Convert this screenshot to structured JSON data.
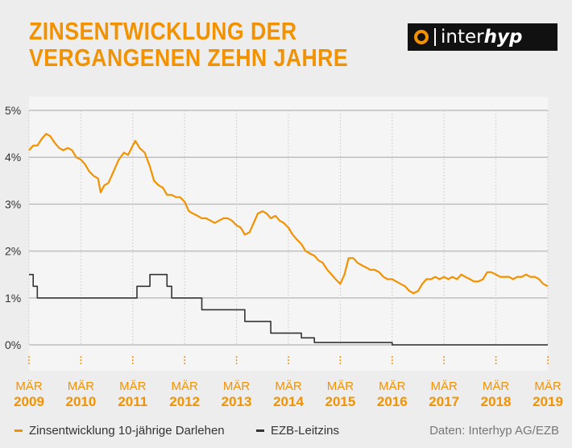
{
  "title": {
    "line1": "ZINSENTWICKLUNG DER",
    "line2": "VERGANGENEN ZEHN JAHRE"
  },
  "logo": {
    "text_main": "inter",
    "text_accent": "hyp"
  },
  "source": "Daten: Interhyp AG/EZB",
  "colors": {
    "mortgage": "#f39200",
    "ecb": "#333333",
    "grid": "#bfbfbf",
    "axis_label": "#f39200"
  },
  "chart_data": {
    "type": "line",
    "title": "ZINSENTWICKLUNG DER VERGANGENEN ZEHN JAHRE",
    "xlabel": "",
    "ylabel": "",
    "ylim": [
      0,
      5
    ],
    "xlim": [
      2009.17,
      2019.17
    ],
    "y_ticks": [
      "0%",
      "1%",
      "2%",
      "3%",
      "4%",
      "5%"
    ],
    "x_ticks": [
      {
        "month": "MÄR",
        "year": "2009",
        "x": 2009.17
      },
      {
        "month": "MÄR",
        "year": "2010",
        "x": 2010.17
      },
      {
        "month": "MÄR",
        "year": "2011",
        "x": 2011.17
      },
      {
        "month": "MÄR",
        "year": "2012",
        "x": 2012.17
      },
      {
        "month": "MÄR",
        "year": "2013",
        "x": 2013.17
      },
      {
        "month": "MÄR",
        "year": "2014",
        "x": 2014.17
      },
      {
        "month": "MÄR",
        "year": "2015",
        "x": 2015.17
      },
      {
        "month": "MÄR",
        "year": "2016",
        "x": 2016.17
      },
      {
        "month": "MÄR",
        "year": "2017",
        "x": 2017.17
      },
      {
        "month": "MÄR",
        "year": "2018",
        "x": 2018.17
      },
      {
        "month": "MÄR",
        "year": "2019",
        "x": 2019.17
      }
    ],
    "grid": true,
    "legend": "bottom",
    "series": [
      {
        "name": "Zinsentwicklung 10-jährige Darlehen",
        "color": "#f39200",
        "step": false,
        "points": [
          [
            2009.17,
            4.15
          ],
          [
            2009.25,
            4.25
          ],
          [
            2009.33,
            4.25
          ],
          [
            2009.42,
            4.4
          ],
          [
            2009.5,
            4.5
          ],
          [
            2009.58,
            4.45
          ],
          [
            2009.67,
            4.3
          ],
          [
            2009.75,
            4.2
          ],
          [
            2009.83,
            4.15
          ],
          [
            2009.92,
            4.2
          ],
          [
            2010.0,
            4.15
          ],
          [
            2010.08,
            4.0
          ],
          [
            2010.17,
            3.95
          ],
          [
            2010.25,
            3.85
          ],
          [
            2010.33,
            3.7
          ],
          [
            2010.42,
            3.6
          ],
          [
            2010.5,
            3.55
          ],
          [
            2010.55,
            3.25
          ],
          [
            2010.62,
            3.4
          ],
          [
            2010.7,
            3.45
          ],
          [
            2010.8,
            3.7
          ],
          [
            2010.9,
            3.95
          ],
          [
            2011.0,
            4.1
          ],
          [
            2011.08,
            4.05
          ],
          [
            2011.17,
            4.25
          ],
          [
            2011.22,
            4.35
          ],
          [
            2011.3,
            4.2
          ],
          [
            2011.4,
            4.1
          ],
          [
            2011.5,
            3.8
          ],
          [
            2011.58,
            3.5
          ],
          [
            2011.67,
            3.4
          ],
          [
            2011.75,
            3.35
          ],
          [
            2011.83,
            3.2
          ],
          [
            2011.92,
            3.2
          ],
          [
            2012.0,
            3.15
          ],
          [
            2012.08,
            3.15
          ],
          [
            2012.17,
            3.05
          ],
          [
            2012.25,
            2.85
          ],
          [
            2012.33,
            2.8
          ],
          [
            2012.42,
            2.75
          ],
          [
            2012.5,
            2.7
          ],
          [
            2012.58,
            2.7
          ],
          [
            2012.67,
            2.65
          ],
          [
            2012.75,
            2.6
          ],
          [
            2012.83,
            2.65
          ],
          [
            2012.92,
            2.7
          ],
          [
            2013.0,
            2.7
          ],
          [
            2013.08,
            2.65
          ],
          [
            2013.17,
            2.55
          ],
          [
            2013.25,
            2.5
          ],
          [
            2013.33,
            2.35
          ],
          [
            2013.42,
            2.4
          ],
          [
            2013.5,
            2.6
          ],
          [
            2013.58,
            2.8
          ],
          [
            2013.67,
            2.85
          ],
          [
            2013.75,
            2.8
          ],
          [
            2013.83,
            2.7
          ],
          [
            2013.92,
            2.75
          ],
          [
            2014.0,
            2.65
          ],
          [
            2014.08,
            2.6
          ],
          [
            2014.17,
            2.5
          ],
          [
            2014.25,
            2.35
          ],
          [
            2014.33,
            2.25
          ],
          [
            2014.42,
            2.15
          ],
          [
            2014.5,
            2.0
          ],
          [
            2014.58,
            1.95
          ],
          [
            2014.67,
            1.9
          ],
          [
            2014.75,
            1.8
          ],
          [
            2014.83,
            1.75
          ],
          [
            2014.92,
            1.6
          ],
          [
            2015.0,
            1.5
          ],
          [
            2015.08,
            1.4
          ],
          [
            2015.17,
            1.3
          ],
          [
            2015.25,
            1.5
          ],
          [
            2015.33,
            1.85
          ],
          [
            2015.42,
            1.85
          ],
          [
            2015.5,
            1.75
          ],
          [
            2015.58,
            1.7
          ],
          [
            2015.67,
            1.65
          ],
          [
            2015.75,
            1.6
          ],
          [
            2015.83,
            1.6
          ],
          [
            2015.92,
            1.55
          ],
          [
            2016.0,
            1.45
          ],
          [
            2016.08,
            1.4
          ],
          [
            2016.17,
            1.4
          ],
          [
            2016.25,
            1.35
          ],
          [
            2016.33,
            1.3
          ],
          [
            2016.42,
            1.25
          ],
          [
            2016.5,
            1.15
          ],
          [
            2016.58,
            1.1
          ],
          [
            2016.67,
            1.15
          ],
          [
            2016.75,
            1.3
          ],
          [
            2016.83,
            1.4
          ],
          [
            2016.92,
            1.4
          ],
          [
            2017.0,
            1.45
          ],
          [
            2017.08,
            1.4
          ],
          [
            2017.17,
            1.45
          ],
          [
            2017.25,
            1.4
          ],
          [
            2017.33,
            1.45
          ],
          [
            2017.42,
            1.4
          ],
          [
            2017.5,
            1.5
          ],
          [
            2017.58,
            1.45
          ],
          [
            2017.67,
            1.4
          ],
          [
            2017.75,
            1.35
          ],
          [
            2017.83,
            1.35
          ],
          [
            2017.92,
            1.4
          ],
          [
            2018.0,
            1.55
          ],
          [
            2018.08,
            1.55
          ],
          [
            2018.17,
            1.5
          ],
          [
            2018.25,
            1.45
          ],
          [
            2018.33,
            1.45
          ],
          [
            2018.42,
            1.45
          ],
          [
            2018.5,
            1.4
          ],
          [
            2018.58,
            1.45
          ],
          [
            2018.67,
            1.45
          ],
          [
            2018.75,
            1.5
          ],
          [
            2018.83,
            1.45
          ],
          [
            2018.92,
            1.45
          ],
          [
            2019.0,
            1.4
          ],
          [
            2019.08,
            1.3
          ],
          [
            2019.17,
            1.25
          ]
        ]
      },
      {
        "name": "EZB-Leitzins",
        "color": "#333333",
        "step": true,
        "points": [
          [
            2009.17,
            1.5
          ],
          [
            2009.25,
            1.25
          ],
          [
            2009.33,
            1.0
          ],
          [
            2011.25,
            1.25
          ],
          [
            2011.5,
            1.5
          ],
          [
            2011.83,
            1.25
          ],
          [
            2011.92,
            1.0
          ],
          [
            2012.5,
            0.75
          ],
          [
            2013.33,
            0.5
          ],
          [
            2013.83,
            0.25
          ],
          [
            2014.42,
            0.15
          ],
          [
            2014.67,
            0.05
          ],
          [
            2016.17,
            0.0
          ],
          [
            2019.17,
            0.0
          ]
        ]
      }
    ]
  }
}
